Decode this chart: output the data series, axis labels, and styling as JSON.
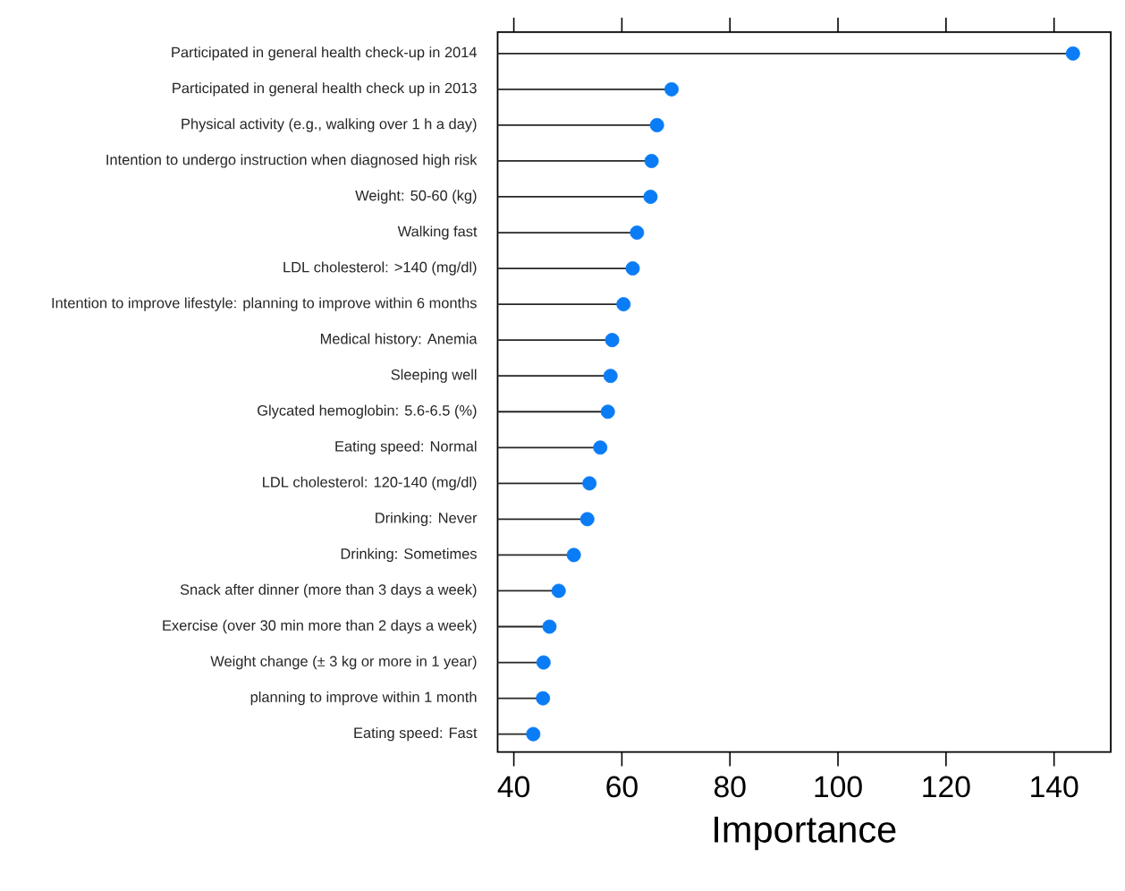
{
  "chart_data": {
    "type": "lollipop",
    "orientation": "horizontal",
    "xlabel": "Importance",
    "categories": [
      "Participated in general health check-up in 2014",
      "Participated in general health check up in 2013",
      "Physical activity (e.g., walking over 1 h a day)",
      "Intention to undergo instruction when diagnosed high risk",
      "Weight: 50-60 (kg)",
      "Walking fast",
      "LDL cholesterol: >140 (mg/dl)",
      "Intention to improve lifestyle: planning to improve within 6 months",
      "Medical history: Anemia",
      "Sleeping well",
      "Glycated hemoglobin: 5.6-6.5 (%)",
      "Eating speed: Normal",
      "LDL cholesterol: 120-140 (mg/dl)",
      "Drinking: Never",
      "Drinking: Sometimes",
      "Snack after dinner (more than 3 days a week)",
      "Exercise (over 30 min more than 2 days a week)",
      "Weight change (± 3 kg or more in 1 year)",
      "planning to improve within 1 month",
      "Eating speed: Fast"
    ],
    "values": [
      143.5,
      69.2,
      66.5,
      65.5,
      65.3,
      62.8,
      62,
      60.3,
      58.2,
      57.9,
      57.4,
      56,
      54,
      53.6,
      51.1,
      48.3,
      46.6,
      45.5,
      45.4,
      43.6
    ],
    "color": "#0a7cf5",
    "marker": "circle",
    "xlim": [
      37,
      150.5
    ],
    "xticks": [
      40,
      60,
      80,
      100,
      120,
      140
    ]
  }
}
